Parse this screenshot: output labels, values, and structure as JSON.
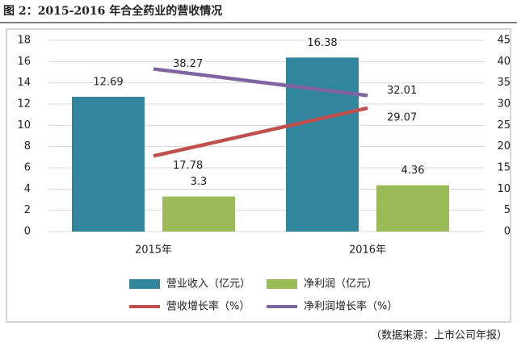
{
  "title": "图 2：2015-2016 年合全药业的营收情况",
  "source": "（数据来源：上市公司年报）",
  "chart_data": {
    "type": "bar",
    "categories": [
      "2015年",
      "2016年"
    ],
    "series": [
      {
        "name": "营业收入（亿元）",
        "type": "bar",
        "color": "#31859c",
        "values": [
          12.69,
          16.38
        ]
      },
      {
        "name": "净利润（亿元）",
        "type": "bar",
        "color": "#9bbb59",
        "values": [
          3.3,
          4.36
        ]
      },
      {
        "name": "营收增长率（%）",
        "type": "line",
        "axis": "y2",
        "color": "#c0504d",
        "values": [
          17.78,
          29.07
        ]
      },
      {
        "name": "净利润增长率（%）",
        "type": "line",
        "axis": "y2",
        "color": "#8064a2",
        "values": [
          38.27,
          32.01
        ]
      }
    ],
    "ylim": [
      0,
      18
    ],
    "yticks": [
      0,
      2,
      4,
      6,
      8,
      10,
      12,
      14,
      16,
      18
    ],
    "y2lim": [
      0,
      45
    ],
    "y2ticks": [
      0,
      5,
      10,
      15,
      20,
      25,
      30,
      35,
      40,
      45
    ],
    "grid": true
  }
}
